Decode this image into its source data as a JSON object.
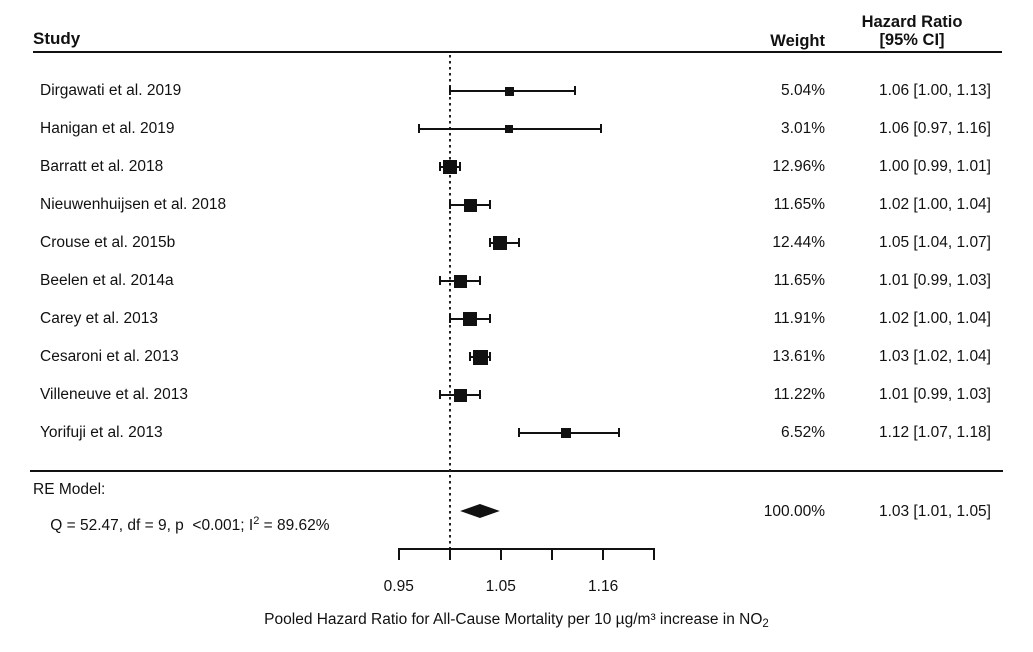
{
  "colors": {
    "ink": "#111111",
    "background": "#ffffff"
  },
  "chart_data": {
    "type": "forest",
    "x_scale": "log",
    "columns": {
      "study": "Study",
      "weight": "Weight",
      "hr_line1": "Hazard Ratio",
      "hr_line2": "[95% CI]"
    },
    "studies": [
      {
        "label": "Dirgawati et al. 2019",
        "weight": "5.04%",
        "weight_value": 5.04,
        "hr": 1.06,
        "ci_low": 1.0,
        "ci_high": 1.13,
        "hr_ci": "1.06 [1.00, 1.13]"
      },
      {
        "label": "Hanigan et al. 2019",
        "weight": "3.01%",
        "weight_value": 3.01,
        "hr": 1.06,
        "ci_low": 0.97,
        "ci_high": 1.16,
        "hr_ci": "1.06 [0.97, 1.16]"
      },
      {
        "label": "Barratt et al. 2018",
        "weight": "12.96%",
        "weight_value": 12.96,
        "hr": 1.0,
        "ci_low": 0.99,
        "ci_high": 1.01,
        "hr_ci": "1.00 [0.99, 1.01]"
      },
      {
        "label": "Nieuwenhuijsen et al. 2018",
        "weight": "11.65%",
        "weight_value": 11.65,
        "hr": 1.02,
        "ci_low": 1.0,
        "ci_high": 1.04,
        "hr_ci": "1.02 [1.00, 1.04]"
      },
      {
        "label": "Crouse et al. 2015b",
        "weight": "12.44%",
        "weight_value": 12.44,
        "hr": 1.05,
        "ci_low": 1.04,
        "ci_high": 1.07,
        "hr_ci": "1.05 [1.04, 1.07]"
      },
      {
        "label": "Beelen et al. 2014a",
        "weight": "11.65%",
        "weight_value": 11.65,
        "hr": 1.01,
        "ci_low": 0.99,
        "ci_high": 1.03,
        "hr_ci": "1.01 [0.99, 1.03]"
      },
      {
        "label": "Carey et al. 2013",
        "weight": "11.91%",
        "weight_value": 11.91,
        "hr": 1.02,
        "ci_low": 1.0,
        "ci_high": 1.04,
        "hr_ci": "1.02 [1.00, 1.04]"
      },
      {
        "label": "Cesaroni et al. 2013",
        "weight": "13.61%",
        "weight_value": 13.61,
        "hr": 1.03,
        "ci_low": 1.02,
        "ci_high": 1.04,
        "hr_ci": "1.03 [1.02, 1.04]"
      },
      {
        "label": "Villeneuve et al. 2013",
        "weight": "11.22%",
        "weight_value": 11.22,
        "hr": 1.01,
        "ci_low": 0.99,
        "ci_high": 1.03,
        "hr_ci": "1.01 [0.99, 1.03]"
      },
      {
        "label": "Yorifuji et al. 2013",
        "weight": "6.52%",
        "weight_value": 6.52,
        "hr": 1.12,
        "ci_low": 1.07,
        "ci_high": 1.18,
        "hr_ci": "1.12 [1.07, 1.18]"
      }
    ],
    "summary": {
      "title": "RE Model:",
      "stats_prefix": "Q = 52.47, df = 9, p  <0.001; I",
      "stats_sup": "2",
      "stats_suffix": " = 89.62%",
      "weight": "100.00%",
      "hr": 1.03,
      "ci_low": 1.01,
      "ci_high": 1.05,
      "hr_ci": "1.03 [1.01, 1.05]"
    },
    "axis": {
      "reference_value": 1.0,
      "ticks": [
        {
          "value": 0.951,
          "label": "0.95"
        },
        {
          "value": 1.0,
          "label": ""
        },
        {
          "value": 1.051,
          "label": "1.05"
        },
        {
          "value": 1.105,
          "label": ""
        },
        {
          "value": 1.162,
          "label": "1.16"
        },
        {
          "value": 1.221,
          "label": ""
        }
      ]
    },
    "xlabel_prefix": "Pooled Hazard Ratio for All-Cause Mortality per 10 µg/m³ increase in NO",
    "xlabel_sub": "2"
  }
}
